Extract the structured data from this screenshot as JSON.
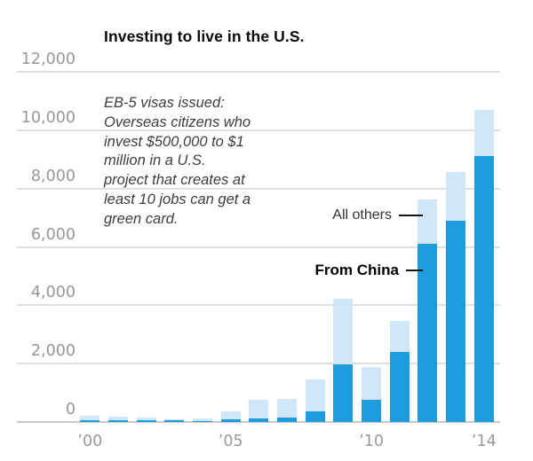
{
  "title": "Investing to live in the U.S.",
  "annotation": {
    "lead": "EB-5 visas issued:",
    "lines": [
      "Overseas citizens who",
      "invest $500,000 to $1",
      "million in a U.S.",
      "project that creates at",
      "least 10 jobs can get a",
      "green card."
    ]
  },
  "series_labels": {
    "all_others": "All others",
    "from_china": "From China"
  },
  "colors": {
    "from_china": "#1d9bdd",
    "all_others": "#cfe7f8",
    "gridline": "#dfdfdf",
    "baseline": "#c9c9c9",
    "axis_label": "#979797",
    "annotation_text": "#3d3d3d",
    "title_text": "#0a0a0a",
    "leader_line": "#151515"
  },
  "chart_data": {
    "type": "bar",
    "stacked": true,
    "title": "Investing to live in the U.S.",
    "subtitle": "EB-5 visas issued",
    "categories": [
      "2000",
      "2001",
      "2002",
      "2003",
      "2004",
      "2005",
      "2006",
      "2007",
      "2008",
      "2009",
      "2010",
      "2011",
      "2012",
      "2013",
      "2014"
    ],
    "series": [
      {
        "name": "From China",
        "color": "#1d9bdd",
        "values": [
          70,
          70,
          60,
          50,
          20,
          90,
          120,
          160,
          360,
          1980,
          770,
          2410,
          6120,
          6900,
          9130
        ]
      },
      {
        "name": "All others",
        "color": "#cfe7f8",
        "values": [
          150,
          120,
          90,
          50,
          110,
          260,
          630,
          640,
          1090,
          2240,
          1120,
          1050,
          1520,
          1660,
          1560
        ]
      }
    ],
    "totals": [
      220,
      190,
      150,
      100,
      130,
      350,
      750,
      800,
      1450,
      4220,
      1890,
      3460,
      7640,
      8560,
      10690
    ],
    "ylim": [
      0,
      12000
    ],
    "y_ticks": [
      0,
      2000,
      4000,
      6000,
      8000,
      10000,
      12000
    ],
    "y_tick_labels": [
      "0",
      "2,000",
      "4,000",
      "6,000",
      "8,000",
      "10,000",
      "12,000"
    ],
    "x_tick_labels": [
      {
        "label": "’00",
        "index": 0
      },
      {
        "label": "’05",
        "index": 5
      },
      {
        "label": "’10",
        "index": 10
      },
      {
        "label": "’14",
        "index": 14
      }
    ],
    "grid": true,
    "legend_position": "inline-annotation-right"
  }
}
